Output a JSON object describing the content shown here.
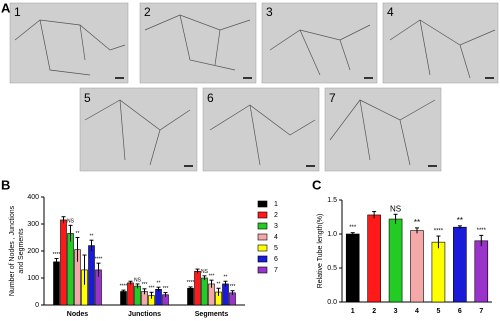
{
  "figure": {
    "panel_labels": [
      "A",
      "B",
      "C"
    ],
    "image_labels": [
      "1",
      "2",
      "3",
      "4",
      "5",
      "6",
      "7"
    ]
  },
  "chart_data": [
    {
      "type": "grouped-bar",
      "ylabel": [
        "Number of Nodes , Junctions",
        "and Segments"
      ],
      "categories": [
        "Nodes",
        "Junctions",
        "Segments"
      ],
      "ylim": [
        0,
        400
      ],
      "yticks": [
        0,
        100,
        200,
        300,
        400
      ],
      "series": [
        {
          "name": "1",
          "color": "#000000",
          "values": [
            160,
            50,
            62
          ],
          "errors": [
            12,
            5,
            5
          ],
          "labels": [
            "****",
            "****",
            "****"
          ]
        },
        {
          "name": "2",
          "color": "#ff1a1a",
          "values": [
            315,
            82,
            125
          ],
          "errors": [
            12,
            6,
            8
          ],
          "labels": [
            null,
            null,
            null
          ]
        },
        {
          "name": "3",
          "color": "#22cc22",
          "values": [
            265,
            70,
            100
          ],
          "errors": [
            30,
            8,
            8
          ],
          "labels": [
            "NS",
            "NS",
            "NS"
          ]
        },
        {
          "name": "4",
          "color": "#f4a8a8",
          "values": [
            205,
            50,
            78
          ],
          "errors": [
            45,
            10,
            14
          ],
          "labels": [
            "**",
            "***",
            "***"
          ]
        },
        {
          "name": "5",
          "color": "#ffff00",
          "values": [
            130,
            35,
            48
          ],
          "errors": [
            55,
            12,
            14
          ],
          "labels": [
            null,
            "***",
            "**"
          ]
        },
        {
          "name": "6",
          "color": "#1a1ad9",
          "values": [
            220,
            58,
            78
          ],
          "errors": [
            20,
            8,
            10
          ],
          "labels": [
            "**",
            "**",
            "**"
          ]
        },
        {
          "name": "7",
          "color": "#9933cc",
          "values": [
            130,
            38,
            45
          ],
          "errors": [
            25,
            8,
            8
          ],
          "labels": [
            "****",
            "***",
            "***"
          ]
        }
      ]
    },
    {
      "type": "bar",
      "ylabel": "Relative Tube length(%)",
      "categories": [
        "1",
        "2",
        "3",
        "4",
        "5",
        "6",
        "7"
      ],
      "values": [
        1.0,
        1.28,
        1.22,
        1.05,
        0.88,
        1.1,
        0.9
      ],
      "errors": [
        0.02,
        0.05,
        0.07,
        0.04,
        0.09,
        0.02,
        0.08
      ],
      "labels": [
        "***",
        null,
        "NS",
        "**",
        "****",
        "**",
        "****"
      ],
      "colors": [
        "#000000",
        "#ff1a1a",
        "#22cc22",
        "#f4a8a8",
        "#ffff00",
        "#1a1ad9",
        "#9933cc"
      ],
      "ylim": [
        0,
        1.5
      ],
      "yticks": [
        {
          "value": 0,
          "label": "0.0"
        },
        {
          "value": 0.5,
          "label": "0.5"
        },
        {
          "value": 1.0,
          "label": "1.0"
        },
        {
          "value": 1.5,
          "label": "1.5"
        }
      ]
    }
  ]
}
